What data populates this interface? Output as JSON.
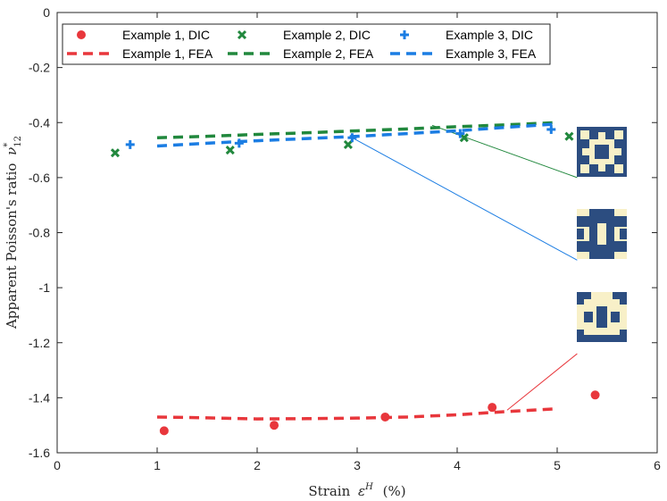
{
  "chart_data": {
    "type": "scatter",
    "title": "",
    "xlabel_text": "Strain",
    "xlabel_symbol": "ε",
    "xlabel_superscript": "H",
    "xlabel_unit": "(%)",
    "ylabel_text": "Apparent Poisson's ratio",
    "ylabel_symbol": "ν",
    "ylabel_superscript": "*",
    "ylabel_subscript": "12",
    "xlim": [
      0,
      6
    ],
    "ylim": [
      -1.6,
      0
    ],
    "xticks": [
      0,
      1,
      2,
      3,
      4,
      5,
      6
    ],
    "yticks": [
      0,
      -0.2,
      -0.4,
      -0.6,
      -0.8,
      -1,
      -1.2,
      -1.4,
      -1.6
    ],
    "grid": false,
    "legend_position": "top",
    "series": [
      {
        "name": "Example 1, DIC",
        "kind": "markers",
        "marker": "circle",
        "color": "#e8373c",
        "x": [
          1.07,
          2.17,
          3.28,
          4.35,
          5.38
        ],
        "y": [
          -1.52,
          -1.5,
          -1.47,
          -1.435,
          -1.39
        ]
      },
      {
        "name": "Example 2, DIC",
        "kind": "markers",
        "marker": "x",
        "color": "#21883d",
        "x": [
          0.58,
          1.73,
          2.91,
          4.07,
          5.12
        ],
        "y": [
          -0.51,
          -0.5,
          -0.48,
          -0.455,
          -0.45
        ]
      },
      {
        "name": "Example 3, DIC",
        "kind": "markers",
        "marker": "plus",
        "color": "#1b7de3",
        "x": [
          0.73,
          1.82,
          2.95,
          4.03,
          4.94
        ],
        "y": [
          -0.48,
          -0.475,
          -0.455,
          -0.44,
          -0.425
        ]
      },
      {
        "name": "Example 1, FEA",
        "kind": "dashed-line",
        "color": "#e8373c",
        "x": [
          1.0,
          1.5,
          2.0,
          2.5,
          3.0,
          3.5,
          4.0,
          4.5,
          5.0
        ],
        "y": [
          -1.47,
          -1.473,
          -1.477,
          -1.476,
          -1.474,
          -1.47,
          -1.462,
          -1.45,
          -1.44
        ]
      },
      {
        "name": "Example 2, FEA",
        "kind": "dashed-line",
        "color": "#21883d",
        "x": [
          1.0,
          1.5,
          2.0,
          2.5,
          3.0,
          3.5,
          4.0,
          4.5,
          5.0
        ],
        "y": [
          -0.455,
          -0.45,
          -0.443,
          -0.437,
          -0.43,
          -0.423,
          -0.415,
          -0.408,
          -0.4
        ]
      },
      {
        "name": "Example 3, FEA",
        "kind": "dashed-line",
        "color": "#1b7de3",
        "x": [
          1.0,
          1.5,
          2.0,
          2.5,
          3.0,
          3.5,
          4.0,
          4.5,
          5.0
        ],
        "y": [
          -0.485,
          -0.475,
          -0.466,
          -0.458,
          -0.45,
          -0.44,
          -0.43,
          -0.417,
          -0.405
        ]
      }
    ],
    "annotations": [
      {
        "name": "leader-green",
        "color": "#21883d",
        "from": [
          3.75,
          -0.41
        ],
        "to": [
          5.2,
          -0.6
        ]
      },
      {
        "name": "leader-blue",
        "color": "#1b7de3",
        "from": [
          2.95,
          -0.455
        ],
        "to": [
          5.2,
          -0.9
        ]
      },
      {
        "name": "leader-red",
        "color": "#e8373c",
        "from": [
          4.5,
          -1.445
        ],
        "to": [
          5.2,
          -1.24
        ]
      }
    ],
    "insets": [
      {
        "name": "unit-cell-example-2",
        "shows": "Example 2 unit cell"
      },
      {
        "name": "unit-cell-example-3",
        "shows": "Example 3 unit cell"
      },
      {
        "name": "unit-cell-example-1",
        "shows": "Example 1 unit cell"
      }
    ]
  },
  "colors": {
    "cell_dark": "#2c4d80",
    "cell_light": "#f8f0c8"
  }
}
